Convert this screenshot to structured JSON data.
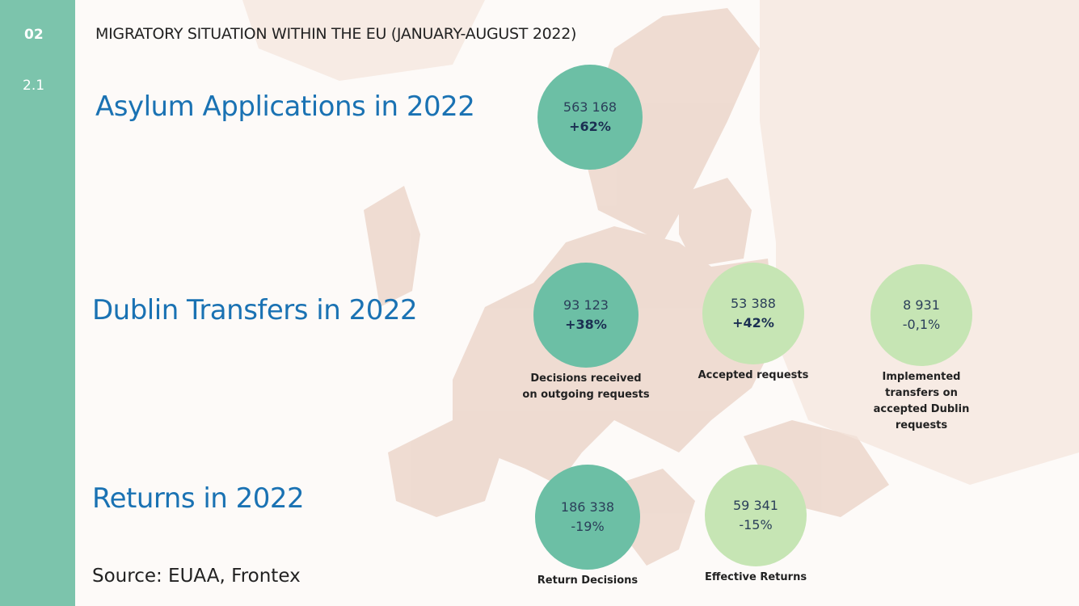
{
  "header": {
    "section": "02",
    "subsection": "2.1",
    "title": "MIGRATORY SITUATION WITHIN THE EU (JANUARY-AUGUST 2022)"
  },
  "sections": [
    {
      "heading": "Asylum Applications in 2022",
      "items": [
        {
          "value": "563 168",
          "change": "+62%"
        }
      ]
    },
    {
      "heading": "Dublin Transfers in 2022",
      "items": [
        {
          "value": "93 123",
          "change": "+38%",
          "caption": [
            "Decisions received",
            "on outgoing requests"
          ]
        },
        {
          "value": "53 388",
          "change": "+42%",
          "caption": [
            "Accepted requests"
          ]
        },
        {
          "value": "8 931",
          "change": "-0,1%",
          "caption": [
            "Implemented",
            "transfers on",
            "accepted Dublin",
            "requests"
          ]
        }
      ]
    },
    {
      "heading": "Returns in 2022",
      "items": [
        {
          "value": "186 338",
          "change": "-19%",
          "caption": [
            "Return Decisions"
          ]
        },
        {
          "value": "59 341",
          "change": "-15%",
          "caption": [
            "Effective Returns"
          ]
        }
      ]
    }
  ],
  "source": "Source: EUAA, Frontex"
}
